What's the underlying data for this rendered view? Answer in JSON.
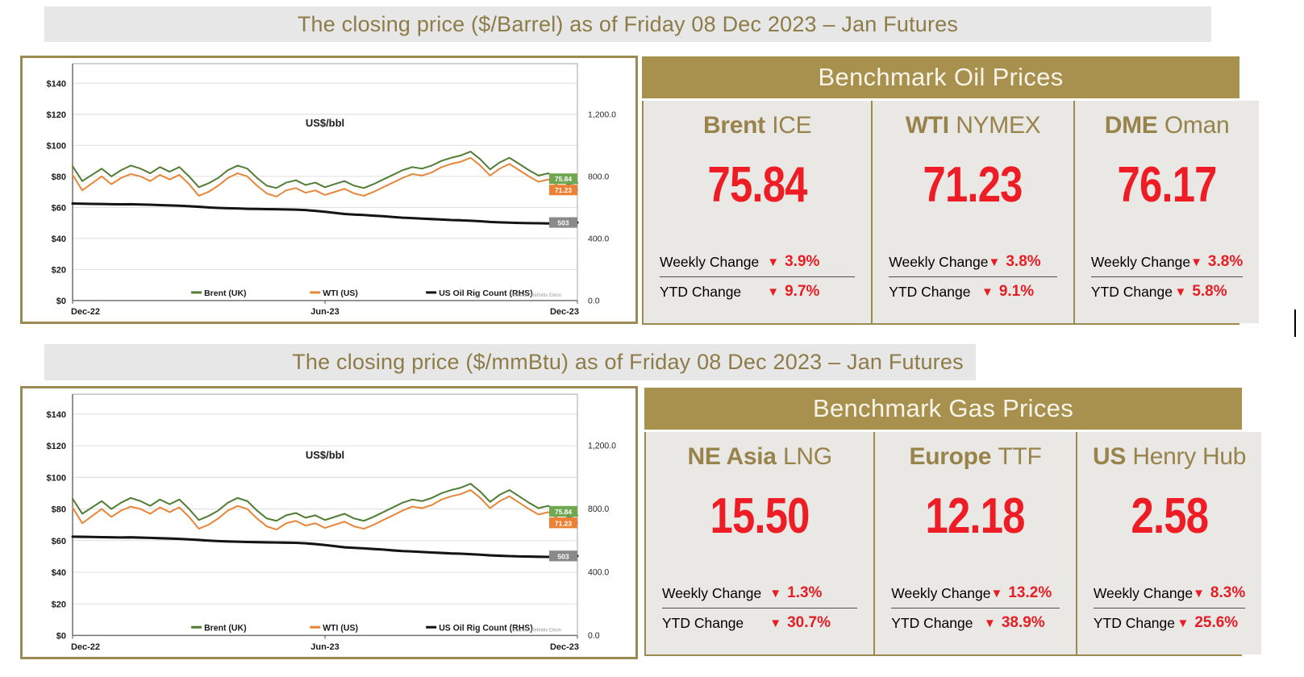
{
  "icons": {
    "down_triangle": "▼"
  },
  "sections": [
    {
      "title": "The closing price ($/Barrel) as of Friday 08 Dec 2023 – Jan Futures",
      "panel_header": "Benchmark Oil Prices",
      "columns": [
        {
          "name_bold": "Brent",
          "name_rest": "ICE",
          "price": "75.84",
          "weekly_label": "Weekly Change",
          "weekly_value": "3.9%",
          "ytd_label": "YTD Change",
          "ytd_value": "9.7%"
        },
        {
          "name_bold": "WTI",
          "name_rest": "NYMEX",
          "price": "71.23",
          "weekly_label": "Weekly Change",
          "weekly_value": "3.8%",
          "ytd_label": "YTD Change",
          "ytd_value": "9.1%"
        },
        {
          "name_bold": "DME",
          "name_rest": "Oman",
          "price": "76.17",
          "weekly_label": "Weekly Change",
          "weekly_value": "3.8%",
          "ytd_label": "YTD Change",
          "ytd_value": "5.8%"
        }
      ]
    },
    {
      "title": "The closing price ($/mmBtu) as of Friday 08 Dec 2023 – Jan Futures",
      "panel_header": "Benchmark Gas Prices",
      "columns": [
        {
          "name_bold": "NE Asia",
          "name_rest": "LNG",
          "price": "15.50",
          "weekly_label": "Weekly Change",
          "weekly_value": "1.3%",
          "ytd_label": "YTD Change",
          "ytd_value": "30.7%"
        },
        {
          "name_bold": "Europe",
          "name_rest": "TTF",
          "price": "12.18",
          "weekly_label": "Weekly Change",
          "weekly_value": "13.2%",
          "ytd_label": "YTD Change",
          "ytd_value": "38.9%"
        },
        {
          "name_bold": "US",
          "name_rest": "Henry Hub",
          "price": "2.58",
          "weekly_label": "Weekly Change",
          "weekly_value": "8.3%",
          "ytd_label": "YTD Change",
          "ytd_value": "25.6%"
        }
      ]
    }
  ],
  "chart_data": {
    "type": "line",
    "title": "US$/bbl",
    "source": "Source: Refinitiv Eikon",
    "x_ticks": [
      "Dec-22",
      "Jun-23",
      "Dec-23"
    ],
    "y_left": {
      "ticks": [
        "$0",
        "$20",
        "$40",
        "$60",
        "$80",
        "$100",
        "$120",
        "$140"
      ],
      "range": [
        0,
        150
      ]
    },
    "y_right": {
      "ticks": [
        "0.0",
        "400.0",
        "800.0",
        "1,200.0"
      ],
      "range": [
        0,
        1500
      ]
    },
    "legend_position": "bottom-inside",
    "grid": true,
    "series": [
      {
        "name": "Brent (UK)",
        "axis": "left",
        "color": "#517d35",
        "end_label": {
          "text": "75.84",
          "bg": "#6fa850"
        },
        "values": [
          86.5,
          77,
          81,
          85,
          80,
          84,
          87,
          85,
          82,
          86,
          83,
          86,
          80,
          73,
          75.5,
          79,
          84,
          87,
          85,
          79,
          74,
          72.5,
          76,
          77.5,
          74.5,
          76,
          73,
          75,
          77,
          74,
          72.5,
          75,
          78,
          81,
          84,
          86,
          85,
          87,
          90,
          92,
          93.5,
          96,
          91,
          84.5,
          89,
          92,
          88,
          84,
          80.5,
          82,
          78,
          75,
          75.84
        ]
      },
      {
        "name": "WTI (US)",
        "axis": "left",
        "color": "#e6873b",
        "end_label": {
          "text": "71.23",
          "bg": "#ec8135"
        },
        "values": [
          81,
          71,
          75.5,
          80,
          75,
          79,
          81.5,
          80,
          77,
          81,
          78,
          81,
          75,
          67.5,
          70,
          74,
          79,
          82,
          80,
          74,
          69,
          67,
          71,
          72.5,
          69.5,
          71,
          68,
          70,
          72,
          69,
          67.5,
          70,
          73,
          76,
          79,
          81.5,
          80.5,
          82.5,
          86,
          88,
          89.5,
          92,
          87,
          80.5,
          85,
          88,
          84,
          80,
          76.5,
          78,
          74,
          70,
          71.23
        ]
      },
      {
        "name": "US Oil Rig Count (RHS)",
        "axis": "right",
        "color": "#141414",
        "end_label": {
          "text": "503",
          "bg": "#8a8a8a"
        },
        "values": [
          625,
          624,
          623,
          622,
          621,
          620,
          621,
          619,
          617,
          615,
          613,
          611,
          608,
          604,
          600,
          597,
          595,
          593,
          591,
          590,
          589,
          588,
          587,
          586,
          583,
          578,
          572,
          565,
          558,
          554,
          551,
          547,
          543,
          538,
          534,
          531,
          528,
          525,
          522,
          519,
          517,
          514,
          511,
          507,
          504,
          502,
          500,
          499,
          498,
          497,
          499,
          501,
          503
        ]
      }
    ]
  }
}
